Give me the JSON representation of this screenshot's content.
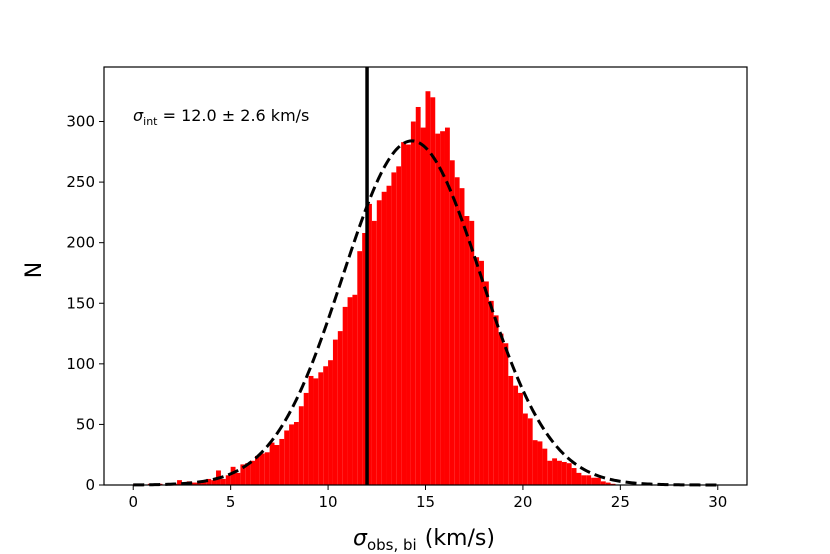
{
  "chart_data": {
    "type": "bar",
    "title": "",
    "xlabel": "(km/s)",
    "xlabel_symbol": "σ",
    "xlabel_subscript": "obs, bi",
    "ylabel": "N",
    "xlim": [
      -1.5,
      31.5
    ],
    "ylim": [
      0,
      345
    ],
    "x_ticks": [
      0,
      5,
      10,
      15,
      20,
      25,
      30
    ],
    "y_ticks": [
      0,
      50,
      100,
      150,
      200,
      250,
      300
    ],
    "bin_width": 0.25,
    "bar_color": "#ff0000",
    "bins": [
      [
        0.0,
        1
      ],
      [
        0.75,
        1
      ],
      [
        1.0,
        1
      ],
      [
        1.25,
        1
      ],
      [
        1.75,
        1
      ],
      [
        2.0,
        1
      ],
      [
        2.25,
        4
      ],
      [
        2.5,
        2
      ],
      [
        2.75,
        3
      ],
      [
        3.0,
        2
      ],
      [
        3.25,
        2
      ],
      [
        3.5,
        3
      ],
      [
        3.75,
        5
      ],
      [
        4.0,
        4
      ],
      [
        4.25,
        12
      ],
      [
        4.5,
        5
      ],
      [
        4.75,
        8
      ],
      [
        5.0,
        15
      ],
      [
        5.25,
        10
      ],
      [
        5.5,
        17
      ],
      [
        5.75,
        18
      ],
      [
        6.0,
        20
      ],
      [
        6.25,
        24
      ],
      [
        6.5,
        26
      ],
      [
        6.75,
        27
      ],
      [
        7.0,
        35
      ],
      [
        7.25,
        33
      ],
      [
        7.5,
        38
      ],
      [
        7.75,
        45
      ],
      [
        8.0,
        50
      ],
      [
        8.25,
        52
      ],
      [
        8.5,
        65
      ],
      [
        8.75,
        76
      ],
      [
        9.0,
        90
      ],
      [
        9.25,
        88
      ],
      [
        9.5,
        93
      ],
      [
        9.75,
        98
      ],
      [
        10.0,
        103
      ],
      [
        10.25,
        120
      ],
      [
        10.5,
        127
      ],
      [
        10.75,
        147
      ],
      [
        11.0,
        155
      ],
      [
        11.25,
        157
      ],
      [
        11.5,
        193
      ],
      [
        11.75,
        208
      ],
      [
        12.0,
        232
      ],
      [
        12.25,
        218
      ],
      [
        12.5,
        235
      ],
      [
        12.75,
        242
      ],
      [
        13.0,
        247
      ],
      [
        13.25,
        258
      ],
      [
        13.5,
        263
      ],
      [
        13.75,
        283
      ],
      [
        14.0,
        281
      ],
      [
        14.25,
        300
      ],
      [
        14.5,
        312
      ],
      [
        14.75,
        295
      ],
      [
        15.0,
        325
      ],
      [
        15.25,
        320
      ],
      [
        15.5,
        290
      ],
      [
        15.75,
        292
      ],
      [
        16.0,
        295
      ],
      [
        16.25,
        268
      ],
      [
        16.5,
        254
      ],
      [
        16.75,
        245
      ],
      [
        17.0,
        222
      ],
      [
        17.25,
        218
      ],
      [
        17.5,
        188
      ],
      [
        17.75,
        185
      ],
      [
        18.0,
        168
      ],
      [
        18.25,
        152
      ],
      [
        18.5,
        140
      ],
      [
        18.75,
        125
      ],
      [
        19.0,
        117
      ],
      [
        19.25,
        90
      ],
      [
        19.5,
        82
      ],
      [
        19.75,
        76
      ],
      [
        20.0,
        59
      ],
      [
        20.25,
        55
      ],
      [
        20.5,
        37
      ],
      [
        20.75,
        36
      ],
      [
        21.0,
        30
      ],
      [
        21.25,
        20
      ],
      [
        21.5,
        22
      ],
      [
        21.75,
        20
      ],
      [
        22.0,
        19
      ],
      [
        22.25,
        18
      ],
      [
        22.5,
        14
      ],
      [
        22.75,
        10
      ],
      [
        23.0,
        8
      ],
      [
        23.25,
        8
      ],
      [
        23.5,
        6
      ],
      [
        23.75,
        6
      ],
      [
        24.0,
        3
      ],
      [
        24.25,
        2
      ],
      [
        24.5,
        1
      ]
    ],
    "fit_curve": {
      "style": "dashed",
      "color": "#000000",
      "type": "gaussian",
      "amplitude": 284,
      "mean": 14.3,
      "sigma": 3.55
    },
    "vertical_line": {
      "x": 12.0,
      "color": "#000000"
    },
    "annotation": {
      "symbol": "σ",
      "subscript": "int",
      "value_text": " = 12.0 ± 2.6 km/s"
    }
  }
}
